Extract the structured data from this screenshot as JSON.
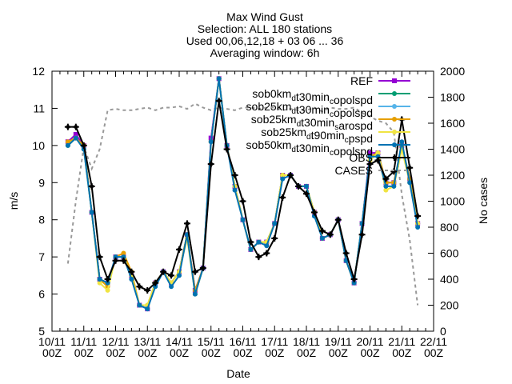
{
  "chart_data": {
    "type": "line",
    "title_lines": [
      "Max Wind Gust",
      "Selection: ALL     180 stations",
      "Used 00,06,12,18 + 03 06 ... 36",
      "Averaging window:  6h"
    ],
    "xlabel": "Date",
    "ylabel": "m/s",
    "y2label": "No cases",
    "ylim": [
      5,
      12
    ],
    "y2lim": [
      0,
      2000
    ],
    "yticks": [
      5,
      6,
      7,
      8,
      9,
      10,
      11,
      12
    ],
    "y2ticks": [
      0,
      200,
      400,
      600,
      800,
      1000,
      1200,
      1400,
      1600,
      1800,
      2000
    ],
    "xlim": [
      0,
      48
    ],
    "x_tick_labels": [
      {
        "x": 0,
        "line1": "10/11",
        "line2": "00Z"
      },
      {
        "x": 4,
        "line1": "11/11",
        "line2": "00Z"
      },
      {
        "x": 8,
        "line1": "12/11",
        "line2": "00Z"
      },
      {
        "x": 12,
        "line1": "13/11",
        "line2": "00Z"
      },
      {
        "x": 16,
        "line1": "14/11",
        "line2": "00Z"
      },
      {
        "x": 20,
        "line1": "15/11",
        "line2": "00Z"
      },
      {
        "x": 24,
        "line1": "16/11",
        "line2": "00Z"
      },
      {
        "x": 28,
        "line1": "17/11",
        "line2": "00Z"
      },
      {
        "x": 32,
        "line1": "18/11",
        "line2": "00Z"
      },
      {
        "x": 36,
        "line1": "19/11",
        "line2": "00Z"
      },
      {
        "x": 40,
        "line1": "20/11",
        "line2": "00Z"
      },
      {
        "x": 44,
        "line1": "21/11",
        "line2": "00Z"
      },
      {
        "x": 48,
        "line1": "22/11",
        "line2": "00Z"
      }
    ],
    "x": [
      2,
      3,
      4,
      5,
      6,
      7,
      8,
      9,
      10,
      11,
      12,
      13,
      14,
      15,
      16,
      17,
      18,
      19,
      20,
      21,
      22,
      23,
      24,
      25,
      26,
      27,
      28,
      29,
      30,
      31,
      32,
      33,
      34,
      35,
      36,
      37,
      38,
      39,
      40,
      41,
      42,
      43,
      44,
      45,
      46
    ],
    "series": [
      {
        "name": "REF",
        "name_parts": [
          [
            "REF",
            ""
          ]
        ],
        "color": "#9400d3",
        "marker": "square",
        "values": [
          10.1,
          10.3,
          10.0,
          8.2,
          6.4,
          6.3,
          7.0,
          7.0,
          6.5,
          5.7,
          5.6,
          6.3,
          6.6,
          6.3,
          6.6,
          7.6,
          6.1,
          6.7,
          10.2,
          11.8,
          10.0,
          8.9,
          8.0,
          7.2,
          7.4,
          7.4,
          7.9,
          9.2,
          9.2,
          8.9,
          8.9,
          8.2,
          7.5,
          7.6,
          8.0,
          6.9,
          6.3,
          7.9,
          9.8,
          9.8,
          9.0,
          9.0,
          10.0,
          9.1,
          7.9
        ]
      },
      {
        "name": "sob0km_d t30min_c opolspd",
        "name_parts": [
          [
            "sob0km",
            ""
          ],
          [
            "d",
            "sub"
          ],
          [
            "t30min",
            ""
          ],
          [
            "c",
            "sub"
          ],
          [
            "opolspd",
            ""
          ]
        ],
        "color": "#009e73",
        "marker": "circle",
        "values": [
          10.0,
          10.2,
          10.0,
          8.2,
          6.4,
          6.3,
          7.0,
          7.0,
          6.5,
          5.7,
          5.6,
          6.3,
          6.6,
          6.3,
          6.6,
          7.6,
          6.0,
          6.7,
          10.1,
          11.8,
          10.0,
          8.9,
          8.0,
          7.2,
          7.4,
          7.4,
          7.9,
          9.2,
          9.2,
          8.9,
          8.9,
          8.2,
          7.5,
          7.6,
          8.0,
          6.9,
          6.3,
          7.9,
          9.7,
          9.8,
          9.0,
          9.0,
          10.0,
          9.1,
          7.9
        ]
      },
      {
        "name": "sob25km_d t30min_c opolspd",
        "name_parts": [
          [
            "sob25km",
            ""
          ],
          [
            "d",
            "sub"
          ],
          [
            "t30min",
            ""
          ],
          [
            "c",
            "sub"
          ],
          [
            "opolspd",
            ""
          ]
        ],
        "color": "#56b4e9",
        "marker": "circle",
        "values": [
          10.0,
          10.2,
          9.9,
          8.2,
          6.4,
          6.3,
          7.0,
          7.0,
          6.5,
          5.7,
          5.6,
          6.3,
          6.6,
          6.3,
          6.6,
          7.6,
          6.0,
          6.7,
          10.1,
          11.8,
          10.0,
          8.9,
          8.0,
          7.2,
          7.4,
          7.4,
          7.9,
          9.2,
          9.2,
          8.9,
          8.9,
          8.2,
          7.5,
          7.6,
          8.0,
          6.9,
          6.3,
          7.9,
          9.7,
          9.8,
          9.0,
          9.0,
          10.0,
          9.1,
          7.9
        ]
      },
      {
        "name": "sob25km_d t30min_s arospd",
        "name_parts": [
          [
            "sob25km",
            ""
          ],
          [
            "d",
            "sub"
          ],
          [
            "t30min",
            ""
          ],
          [
            "s",
            "sub"
          ],
          [
            "arospd",
            ""
          ]
        ],
        "color": "#e69f00",
        "marker": "circle",
        "values": [
          10.1,
          10.2,
          10.0,
          8.2,
          6.4,
          6.2,
          7.0,
          7.1,
          6.6,
          5.7,
          5.7,
          6.3,
          6.6,
          6.3,
          6.6,
          7.6,
          6.1,
          6.7,
          10.1,
          11.8,
          10.0,
          8.9,
          8.0,
          7.2,
          7.4,
          7.4,
          7.9,
          9.2,
          9.2,
          8.9,
          8.9,
          8.2,
          7.5,
          7.6,
          8.0,
          6.9,
          6.3,
          7.9,
          9.7,
          9.8,
          9.0,
          9.0,
          10.0,
          9.1,
          7.9
        ]
      },
      {
        "name": "sob25km_d t90min_c pspd",
        "name_parts": [
          [
            "sob25km",
            ""
          ],
          [
            "d",
            "sub"
          ],
          [
            "t90min",
            ""
          ],
          [
            "c",
            "sub"
          ],
          [
            "pspd",
            ""
          ]
        ],
        "color": "#f0e442",
        "marker": "circle",
        "values": [
          10.0,
          10.2,
          9.9,
          8.2,
          6.3,
          6.1,
          7.0,
          7.0,
          6.5,
          5.7,
          5.7,
          6.3,
          6.6,
          6.3,
          6.6,
          7.5,
          6.0,
          6.7,
          10.1,
          11.8,
          10.0,
          8.9,
          8.0,
          7.2,
          7.4,
          7.4,
          7.9,
          9.2,
          9.2,
          8.9,
          8.9,
          8.2,
          7.5,
          7.6,
          8.0,
          6.9,
          6.3,
          7.9,
          9.6,
          9.8,
          8.8,
          8.9,
          9.9,
          9.0,
          7.9
        ]
      },
      {
        "name": "sob50km_d t30min_c opolspd",
        "name_parts": [
          [
            "sob50km",
            ""
          ],
          [
            "d",
            "sub"
          ],
          [
            "t30min",
            ""
          ],
          [
            "c",
            "sub"
          ],
          [
            "opolspd",
            ""
          ]
        ],
        "color": "#0072b2",
        "marker": "circle",
        "values": [
          10.0,
          10.2,
          9.9,
          8.2,
          6.4,
          6.3,
          7.0,
          7.0,
          6.4,
          5.7,
          5.6,
          6.2,
          6.6,
          6.2,
          6.5,
          7.6,
          6.0,
          6.7,
          10.1,
          11.8,
          10.0,
          8.8,
          8.0,
          7.2,
          7.4,
          7.3,
          7.9,
          9.1,
          9.2,
          8.9,
          8.9,
          8.1,
          7.5,
          7.6,
          8.0,
          6.9,
          6.3,
          7.9,
          9.7,
          9.7,
          8.9,
          8.9,
          10.1,
          9.0,
          7.8
        ]
      },
      {
        "name": "OBS",
        "name_parts": [
          [
            "OBS",
            ""
          ]
        ],
        "color": "#000000",
        "marker": "plus",
        "values": [
          10.5,
          10.5,
          10.0,
          8.9,
          7.0,
          6.4,
          6.9,
          6.9,
          6.6,
          6.2,
          6.1,
          6.3,
          6.6,
          6.5,
          7.2,
          7.9,
          6.6,
          6.7,
          9.5,
          11.2,
          9.9,
          9.2,
          8.5,
          7.4,
          7.0,
          7.1,
          7.5,
          8.6,
          9.2,
          8.9,
          8.7,
          8.2,
          7.7,
          7.6,
          8.0,
          7.1,
          6.4,
          7.6,
          9.5,
          9.6,
          9.1,
          9.3,
          10.7,
          9.4,
          8.1
        ]
      }
    ],
    "cases": {
      "name": "CASES",
      "color": "#999999",
      "style": "dashed",
      "x": [
        2,
        3,
        4,
        5,
        6,
        7,
        8,
        9,
        10,
        11,
        12,
        13,
        14,
        15,
        16,
        17,
        18,
        19,
        20,
        21,
        22,
        23,
        24,
        25,
        26,
        27,
        28,
        29,
        30,
        31,
        32,
        33,
        34,
        35,
        36,
        37,
        38,
        39,
        40,
        41,
        42,
        43,
        44,
        45,
        46
      ],
      "values": [
        520,
        1000,
        1420,
        1250,
        1400,
        1700,
        1710,
        1700,
        1700,
        1710,
        1720,
        1700,
        1720,
        1720,
        1730,
        1710,
        1750,
        1720,
        1700,
        1720,
        1710,
        1700,
        1720,
        1720,
        1710,
        1720,
        1720,
        1700,
        1710,
        1700,
        1700,
        1720,
        1690,
        1720,
        1710,
        1710,
        1720,
        1680,
        1650,
        1620,
        1600,
        1530,
        1050,
        700,
        200
      ]
    }
  }
}
